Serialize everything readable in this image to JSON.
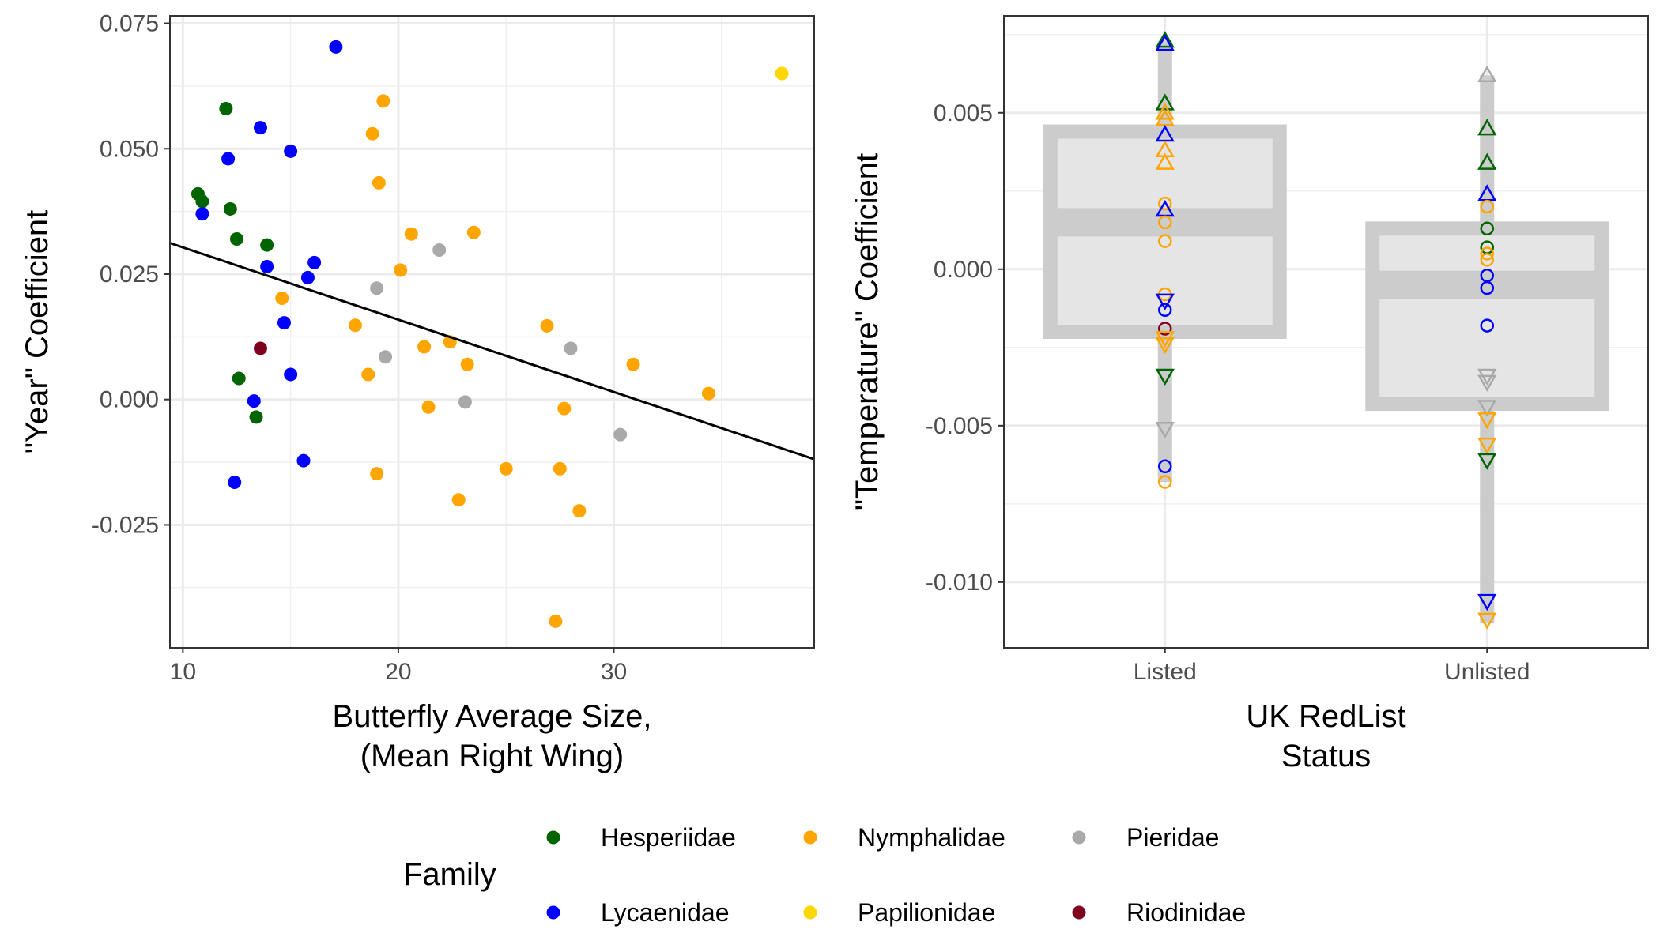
{
  "chart_data": [
    {
      "type": "scatter",
      "xlabel": [
        "Butterfly Average Size,",
        "(Mean Right Wing)"
      ],
      "ylabel": "\"Year\" Coefficient",
      "xlim": [
        9.4,
        39.3
      ],
      "ylim": [
        -0.0495,
        0.0765
      ],
      "x_ticks": [
        {
          "value": 10,
          "label": "10"
        },
        {
          "value": 20,
          "label": "20"
        },
        {
          "value": 30,
          "label": "30"
        }
      ],
      "y_ticks": [
        {
          "value": 0.075,
          "label": "0.075"
        },
        {
          "value": 0.05,
          "label": "0.050"
        },
        {
          "value": 0.025,
          "label": "0.025"
        },
        {
          "value": 0.0,
          "label": "0.000"
        },
        {
          "value": -0.025,
          "label": "-0.025"
        }
      ],
      "grid": true,
      "trend_line": {
        "x": [
          9.4,
          39.3
        ],
        "y": [
          0.0312,
          -0.0119
        ]
      },
      "points": [
        {
          "x": 10.7,
          "y": 0.041,
          "family": "Hesperiidae"
        },
        {
          "x": 10.9,
          "y": 0.0395,
          "family": "Hesperiidae"
        },
        {
          "x": 12.0,
          "y": 0.058,
          "family": "Hesperiidae"
        },
        {
          "x": 12.2,
          "y": 0.038,
          "family": "Hesperiidae"
        },
        {
          "x": 12.5,
          "y": 0.032,
          "family": "Hesperiidae"
        },
        {
          "x": 13.9,
          "y": 0.0308,
          "family": "Hesperiidae"
        },
        {
          "x": 12.6,
          "y": 0.0042,
          "family": "Hesperiidae"
        },
        {
          "x": 13.4,
          "y": -0.0035,
          "family": "Hesperiidae"
        },
        {
          "x": 10.9,
          "y": 0.037,
          "family": "Lycaenidae"
        },
        {
          "x": 12.1,
          "y": 0.048,
          "family": "Lycaenidae"
        },
        {
          "x": 13.6,
          "y": 0.0542,
          "family": "Lycaenidae"
        },
        {
          "x": 15.0,
          "y": 0.0495,
          "family": "Lycaenidae"
        },
        {
          "x": 17.1,
          "y": 0.0703,
          "family": "Lycaenidae"
        },
        {
          "x": 13.9,
          "y": 0.0265,
          "family": "Lycaenidae"
        },
        {
          "x": 16.1,
          "y": 0.0273,
          "family": "Lycaenidae"
        },
        {
          "x": 15.8,
          "y": 0.0243,
          "family": "Lycaenidae"
        },
        {
          "x": 14.7,
          "y": 0.0153,
          "family": "Lycaenidae"
        },
        {
          "x": 15.0,
          "y": 0.005,
          "family": "Lycaenidae"
        },
        {
          "x": 13.3,
          "y": -0.0003,
          "family": "Lycaenidae"
        },
        {
          "x": 15.6,
          "y": -0.0122,
          "family": "Lycaenidae"
        },
        {
          "x": 12.4,
          "y": -0.0165,
          "family": "Lycaenidae"
        },
        {
          "x": 19.3,
          "y": 0.0595,
          "family": "Nymphalidae"
        },
        {
          "x": 18.8,
          "y": 0.053,
          "family": "Nymphalidae"
        },
        {
          "x": 19.1,
          "y": 0.0432,
          "family": "Nymphalidae"
        },
        {
          "x": 20.6,
          "y": 0.033,
          "family": "Nymphalidae"
        },
        {
          "x": 23.5,
          "y": 0.0333,
          "family": "Nymphalidae"
        },
        {
          "x": 20.1,
          "y": 0.0258,
          "family": "Nymphalidae"
        },
        {
          "x": 14.6,
          "y": 0.0202,
          "family": "Nymphalidae"
        },
        {
          "x": 18.0,
          "y": 0.0148,
          "family": "Nymphalidae"
        },
        {
          "x": 21.2,
          "y": 0.0105,
          "family": "Nymphalidae"
        },
        {
          "x": 22.4,
          "y": 0.0115,
          "family": "Nymphalidae"
        },
        {
          "x": 26.9,
          "y": 0.0147,
          "family": "Nymphalidae"
        },
        {
          "x": 18.6,
          "y": 0.005,
          "family": "Nymphalidae"
        },
        {
          "x": 23.2,
          "y": 0.007,
          "family": "Nymphalidae"
        },
        {
          "x": 30.9,
          "y": 0.007,
          "family": "Nymphalidae"
        },
        {
          "x": 34.4,
          "y": 0.0012,
          "family": "Nymphalidae"
        },
        {
          "x": 21.4,
          "y": -0.0015,
          "family": "Nymphalidae"
        },
        {
          "x": 27.7,
          "y": -0.0018,
          "family": "Nymphalidae"
        },
        {
          "x": 19.0,
          "y": -0.0148,
          "family": "Nymphalidae"
        },
        {
          "x": 25.0,
          "y": -0.0138,
          "family": "Nymphalidae"
        },
        {
          "x": 27.5,
          "y": -0.0138,
          "family": "Nymphalidae"
        },
        {
          "x": 22.8,
          "y": -0.02,
          "family": "Nymphalidae"
        },
        {
          "x": 28.4,
          "y": -0.0222,
          "family": "Nymphalidae"
        },
        {
          "x": 27.3,
          "y": -0.0442,
          "family": "Nymphalidae"
        },
        {
          "x": 21.9,
          "y": 0.0298,
          "family": "Pieridae"
        },
        {
          "x": 19.0,
          "y": 0.0222,
          "family": "Pieridae"
        },
        {
          "x": 19.4,
          "y": 0.0085,
          "family": "Pieridae"
        },
        {
          "x": 28.0,
          "y": 0.0102,
          "family": "Pieridae"
        },
        {
          "x": 23.1,
          "y": -0.0005,
          "family": "Pieridae"
        },
        {
          "x": 30.3,
          "y": -0.007,
          "family": "Pieridae"
        },
        {
          "x": 37.8,
          "y": 0.065,
          "family": "Papilionidae"
        },
        {
          "x": 13.6,
          "y": 0.0102,
          "family": "Riodinidae"
        }
      ]
    },
    {
      "type": "box",
      "xlabel": [
        "UK RedList",
        "Status"
      ],
      "ylabel": "\"Temperature\" Coefficient",
      "categories": [
        "Listed",
        "Unlisted"
      ],
      "ylim": [
        -0.0121,
        0.0081
      ],
      "y_ticks": [
        {
          "value": 0.005,
          "label": "0.005"
        },
        {
          "value": 0.0,
          "label": "0.000"
        },
        {
          "value": -0.005,
          "label": "-0.005"
        },
        {
          "value": -0.01,
          "label": "-0.010"
        }
      ],
      "grid": true,
      "boxes": [
        {
          "category": "Listed",
          "min": -0.0068,
          "q1": -0.002,
          "median": 0.0015,
          "q3": 0.0044,
          "max": 0.0073
        },
        {
          "category": "Unlisted",
          "min": -0.0113,
          "q1": -0.0043,
          "median": -0.0005,
          "q3": 0.0013,
          "max": 0.0062
        }
      ],
      "points": [
        {
          "category": "Listed",
          "y": 0.0073,
          "family": "Hesperiidae",
          "shape": "triangle-up"
        },
        {
          "category": "Listed",
          "y": 0.0072,
          "family": "Lycaenidae",
          "shape": "triangle-up"
        },
        {
          "category": "Listed",
          "y": 0.0053,
          "family": "Hesperiidae",
          "shape": "triangle-up"
        },
        {
          "category": "Listed",
          "y": 0.005,
          "family": "Nymphalidae",
          "shape": "triangle-up"
        },
        {
          "category": "Listed",
          "y": 0.0048,
          "family": "Nymphalidae",
          "shape": "triangle-up"
        },
        {
          "category": "Listed",
          "y": 0.0043,
          "family": "Lycaenidae",
          "shape": "triangle-up"
        },
        {
          "category": "Listed",
          "y": 0.0038,
          "family": "Nymphalidae",
          "shape": "triangle-up"
        },
        {
          "category": "Listed",
          "y": 0.0034,
          "family": "Nymphalidae",
          "shape": "triangle-up"
        },
        {
          "category": "Listed",
          "y": 0.0021,
          "family": "Nymphalidae",
          "shape": "circle"
        },
        {
          "category": "Listed",
          "y": 0.0019,
          "family": "Lycaenidae",
          "shape": "triangle-up"
        },
        {
          "category": "Listed",
          "y": 0.0015,
          "family": "Nymphalidae",
          "shape": "circle"
        },
        {
          "category": "Listed",
          "y": 0.0009,
          "family": "Nymphalidae",
          "shape": "circle"
        },
        {
          "category": "Listed",
          "y": -0.0008,
          "family": "Nymphalidae",
          "shape": "circle"
        },
        {
          "category": "Listed",
          "y": -0.001,
          "family": "Lycaenidae",
          "shape": "triangle-down"
        },
        {
          "category": "Listed",
          "y": -0.0013,
          "family": "Lycaenidae",
          "shape": "circle"
        },
        {
          "category": "Listed",
          "y": -0.0019,
          "family": "Riodinidae",
          "shape": "circle"
        },
        {
          "category": "Listed",
          "y": -0.0022,
          "family": "Nymphalidae",
          "shape": "triangle-down"
        },
        {
          "category": "Listed",
          "y": -0.0024,
          "family": "Nymphalidae",
          "shape": "triangle-down"
        },
        {
          "category": "Listed",
          "y": -0.0034,
          "family": "Hesperiidae",
          "shape": "triangle-down"
        },
        {
          "category": "Listed",
          "y": -0.0051,
          "family": "Pieridae",
          "shape": "triangle-down"
        },
        {
          "category": "Listed",
          "y": -0.0063,
          "family": "Lycaenidae",
          "shape": "circle"
        },
        {
          "category": "Listed",
          "y": -0.0068,
          "family": "Nymphalidae",
          "shape": "circle"
        },
        {
          "category": "Unlisted",
          "y": 0.0062,
          "family": "Pieridae",
          "shape": "triangle-up"
        },
        {
          "category": "Unlisted",
          "y": 0.0045,
          "family": "Hesperiidae",
          "shape": "triangle-up"
        },
        {
          "category": "Unlisted",
          "y": 0.0034,
          "family": "Hesperiidae",
          "shape": "triangle-up"
        },
        {
          "category": "Unlisted",
          "y": 0.0024,
          "family": "Lycaenidae",
          "shape": "triangle-up"
        },
        {
          "category": "Unlisted",
          "y": 0.002,
          "family": "Nymphalidae",
          "shape": "circle"
        },
        {
          "category": "Unlisted",
          "y": 0.0013,
          "family": "Hesperiidae",
          "shape": "circle"
        },
        {
          "category": "Unlisted",
          "y": 0.0007,
          "family": "Hesperiidae",
          "shape": "circle"
        },
        {
          "category": "Unlisted",
          "y": 0.0005,
          "family": "Nymphalidae",
          "shape": "circle"
        },
        {
          "category": "Unlisted",
          "y": 0.0003,
          "family": "Nymphalidae",
          "shape": "circle"
        },
        {
          "category": "Unlisted",
          "y": -0.0002,
          "family": "Lycaenidae",
          "shape": "circle"
        },
        {
          "category": "Unlisted",
          "y": -0.0006,
          "family": "Lycaenidae",
          "shape": "circle"
        },
        {
          "category": "Unlisted",
          "y": -0.0018,
          "family": "Lycaenidae",
          "shape": "circle"
        },
        {
          "category": "Unlisted",
          "y": -0.0034,
          "family": "Pieridae",
          "shape": "triangle-down"
        },
        {
          "category": "Unlisted",
          "y": -0.0036,
          "family": "Pieridae",
          "shape": "triangle-down"
        },
        {
          "category": "Unlisted",
          "y": -0.0044,
          "family": "Pieridae",
          "shape": "triangle-down"
        },
        {
          "category": "Unlisted",
          "y": -0.0048,
          "family": "Nymphalidae",
          "shape": "triangle-down"
        },
        {
          "category": "Unlisted",
          "y": -0.0056,
          "family": "Nymphalidae",
          "shape": "triangle-down"
        },
        {
          "category": "Unlisted",
          "y": -0.0061,
          "family": "Hesperiidae",
          "shape": "triangle-down"
        },
        {
          "category": "Unlisted",
          "y": -0.0106,
          "family": "Lycaenidae",
          "shape": "triangle-down"
        },
        {
          "category": "Unlisted",
          "y": -0.0112,
          "family": "Nymphalidae",
          "shape": "triangle-down"
        }
      ]
    }
  ],
  "legend": {
    "title": "Family",
    "placement": "bottom",
    "entries": [
      {
        "label": "Hesperiidae",
        "color": "#006400"
      },
      {
        "label": "Lycaenidae",
        "color": "#0000ff"
      },
      {
        "label": "Nymphalidae",
        "color": "#ffa500"
      },
      {
        "label": "Papilionidae",
        "color": "#ffd700"
      },
      {
        "label": "Pieridae",
        "color": "#a9a9a9"
      },
      {
        "label": "Riodinidae",
        "color": "#800020"
      }
    ]
  }
}
